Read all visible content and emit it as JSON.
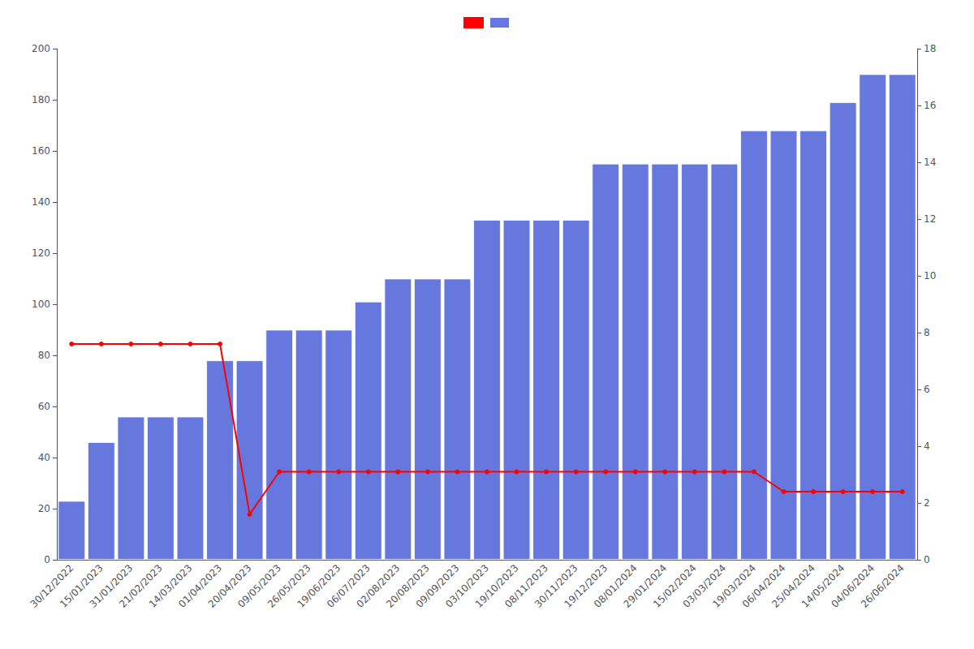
{
  "chart_data": {
    "type": "bar",
    "categories": [
      "30/12/2022",
      "15/01/2023",
      "31/01/2023",
      "21/02/2023",
      "14/03/2023",
      "01/04/2023",
      "20/04/2023",
      "09/05/2023",
      "26/05/2023",
      "19/06/2023",
      "06/07/2023",
      "02/08/2023",
      "20/08/2023",
      "09/09/2023",
      "03/10/2023",
      "19/10/2023",
      "08/11/2023",
      "30/11/2023",
      "19/12/2023",
      "08/01/2024",
      "29/01/2024",
      "15/02/2024",
      "03/03/2024",
      "19/03/2024",
      "06/04/2024",
      "25/04/2024",
      "14/05/2024",
      "04/06/2024",
      "26/06/2024"
    ],
    "series": [
      {
        "type": "bar",
        "color": "#6677dd",
        "values": [
          23,
          46,
          56,
          56,
          56,
          78,
          78,
          90,
          90,
          90,
          101,
          110,
          110,
          110,
          133,
          133,
          133,
          133,
          155,
          155,
          155,
          155,
          155,
          168,
          168,
          168,
          179,
          190,
          190
        ]
      },
      {
        "type": "line",
        "color": "#ff0000",
        "marker": "circle",
        "axis": "y2",
        "values": [
          7.6,
          7.6,
          7.6,
          7.6,
          7.6,
          7.6,
          1.6,
          3.1,
          3.1,
          3.1,
          3.1,
          3.1,
          3.1,
          3.1,
          3.1,
          3.1,
          3.1,
          3.1,
          3.1,
          3.1,
          3.1,
          3.1,
          3.1,
          3.1,
          2.4,
          2.4,
          2.4,
          2.4,
          2.4
        ]
      }
    ],
    "ylim": [
      0,
      200
    ],
    "yticks": [
      0,
      20,
      40,
      60,
      80,
      100,
      120,
      140,
      160,
      180,
      200
    ],
    "y2lim": [
      0,
      18
    ],
    "y2ticks": [
      0,
      2,
      4,
      6,
      8,
      10,
      12,
      14,
      16,
      18
    ],
    "grid": false,
    "legend": "top"
  }
}
